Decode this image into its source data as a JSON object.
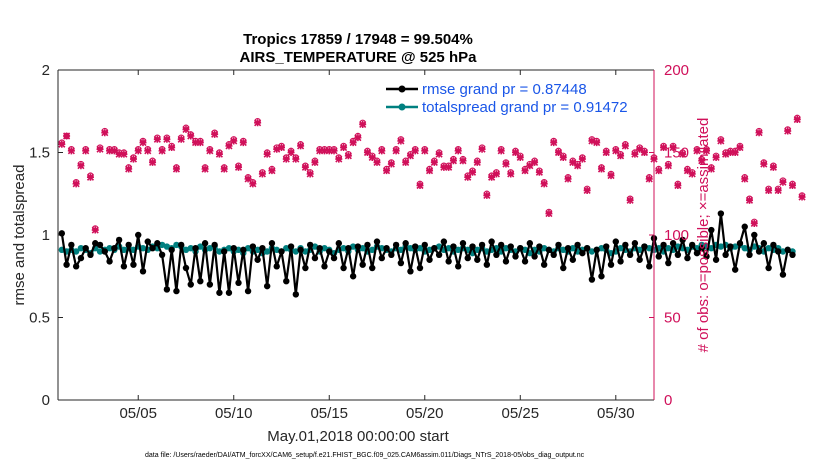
{
  "chart_data": {
    "type": "line",
    "title": "Tropics 17859 / 17948 = 99.504%",
    "subtitle": "AIRS_TEMPERATURE @ 525 hPa",
    "xlabel": "May.01,2018 00:00:00 start",
    "ylabel": "rmse and totalspread",
    "ylabel_right": "# of obs: o=possible; ×=assimilated",
    "footnote": "data file: /Users/raeder/DAI/ATM_forcXX/CAM6_setup/f.e21.FHIST_BGC.f09_025.CAM6assim.011/Diags_NTrS_2018-05/obs_diag_output.nc",
    "xlim": [
      0.8,
      32.0
    ],
    "ylim": [
      0,
      2
    ],
    "ylim_right": [
      0,
      200
    ],
    "x_ticks": [
      5,
      10,
      15,
      20,
      25,
      30
    ],
    "x_tick_labels": [
      "05/05",
      "05/10",
      "05/15",
      "05/20",
      "05/25",
      "05/30"
    ],
    "y_ticks": [
      0,
      0.5,
      1,
      1.5,
      2
    ],
    "y_tick_labels": [
      "0",
      "0.5",
      "1",
      "1.5",
      "2"
    ],
    "y_ticks_right": [
      0,
      50,
      100,
      150,
      200
    ],
    "y_tick_labels_right": [
      "0",
      "50",
      "100",
      "150",
      "200"
    ],
    "x_start": 1.0,
    "x_step": 0.25,
    "legend_placement": "top-right",
    "series": [
      {
        "name": "rmse grand pr = 0.87448",
        "color": "#000000",
        "marker": "circle",
        "values": [
          1.01,
          0.82,
          0.94,
          0.81,
          0.86,
          0.92,
          0.88,
          0.95,
          0.94,
          0.9,
          0.84,
          0.92,
          0.97,
          0.81,
          0.94,
          0.82,
          1.0,
          0.78,
          0.96,
          0.92,
          0.95,
          0.88,
          0.67,
          0.91,
          0.66,
          0.94,
          0.8,
          0.7,
          0.92,
          0.72,
          0.95,
          0.7,
          0.94,
          0.65,
          0.9,
          0.65,
          0.92,
          0.71,
          0.91,
          0.66,
          0.93,
          0.85,
          0.92,
          0.69,
          0.95,
          0.81,
          0.9,
          0.72,
          0.93,
          0.64,
          0.91,
          0.8,
          0.94,
          0.86,
          0.92,
          0.81,
          0.9,
          0.86,
          0.95,
          0.8,
          0.92,
          0.75,
          0.93,
          0.82,
          0.94,
          0.8,
          0.96,
          0.86,
          0.92,
          0.88,
          0.94,
          0.83,
          0.95,
          0.78,
          0.93,
          0.8,
          0.94,
          0.85,
          0.92,
          0.88,
          0.96,
          0.84,
          0.93,
          0.81,
          0.95,
          0.86,
          0.93,
          0.85,
          0.94,
          0.82,
          0.96,
          0.88,
          0.94,
          0.84,
          0.93,
          0.87,
          0.92,
          0.84,
          0.95,
          0.87,
          0.93,
          0.82,
          0.91,
          0.88,
          0.94,
          0.8,
          0.92,
          0.85,
          0.94,
          0.89,
          0.92,
          0.73,
          0.91,
          0.75,
          0.93,
          0.82,
          0.96,
          0.84,
          0.94,
          0.88,
          0.95,
          0.85,
          0.93,
          0.81,
          0.98,
          0.87,
          0.94,
          0.83,
          0.95,
          0.88,
          0.97,
          0.86,
          0.94,
          0.89,
          0.92,
          0.87,
          1.03,
          0.85,
          1.13,
          0.88,
          0.93,
          0.79,
          0.95,
          1.05,
          0.88,
          1.0,
          0.9,
          0.95,
          0.8,
          0.94,
          0.9,
          0.76,
          0.91,
          0.88
        ],
        "values_right": null
      },
      {
        "name": "totalspread grand pr = 0.91472",
        "color": "#008080",
        "marker": "circle",
        "values": [
          0.91,
          0.9,
          0.91,
          0.9,
          0.92,
          0.91,
          0.89,
          0.92,
          0.9,
          0.91,
          0.92,
          0.91,
          0.93,
          0.91,
          0.92,
          0.91,
          0.93,
          0.92,
          0.91,
          0.93,
          0.92,
          0.94,
          0.93,
          0.92,
          0.94,
          0.93,
          0.91,
          0.92,
          0.9,
          0.93,
          0.91,
          0.92,
          0.93,
          0.9,
          0.91,
          0.92,
          0.9,
          0.91,
          0.89,
          0.92,
          0.9,
          0.91,
          0.89,
          0.9,
          0.92,
          0.91,
          0.9,
          0.92,
          0.91,
          0.9,
          0.92,
          0.9,
          0.91,
          0.93,
          0.9,
          0.92,
          0.91,
          0.89,
          0.91,
          0.92,
          0.9,
          0.93,
          0.91,
          0.92,
          0.9,
          0.91,
          0.93,
          0.92,
          0.91,
          0.9,
          0.92,
          0.91,
          0.93,
          0.92,
          0.91,
          0.92,
          0.9,
          0.91,
          0.92,
          0.93,
          0.91,
          0.92,
          0.9,
          0.91,
          0.92,
          0.91,
          0.89,
          0.91,
          0.92,
          0.9,
          0.91,
          0.92,
          0.9,
          0.92,
          0.91,
          0.9,
          0.92,
          0.91,
          0.89,
          0.91,
          0.9,
          0.92,
          0.91,
          0.9,
          0.92,
          0.91,
          0.9,
          0.92,
          0.9,
          0.91,
          0.92,
          0.9,
          0.91,
          0.92,
          0.91,
          0.89,
          0.9,
          0.92,
          0.91,
          0.9,
          0.92,
          0.91,
          0.93,
          0.92,
          0.91,
          0.92,
          0.9,
          0.92,
          0.91,
          0.93,
          0.92,
          0.91,
          0.93,
          0.92,
          0.94,
          0.93,
          0.92,
          0.94,
          0.93,
          0.94,
          0.92,
          0.93,
          0.94,
          0.92,
          0.91,
          0.93,
          0.92,
          0.9,
          0.92,
          0.91,
          0.92,
          0.9,
          0.91,
          0.9
        ]
      }
    ],
    "obs_counts": {
      "name": "# of obs",
      "color": "#d0105a",
      "possible": [
        156,
        160,
        152,
        132,
        143,
        152,
        136,
        104,
        153,
        163,
        152,
        152,
        150,
        150,
        141,
        147,
        152,
        157,
        152,
        145,
        159,
        152,
        159,
        154,
        141,
        159,
        165,
        161,
        157,
        157,
        141,
        152,
        162,
        150,
        141,
        155,
        158,
        142,
        157,
        135,
        132,
        169,
        138,
        150,
        140,
        153,
        154,
        147,
        151,
        147,
        155,
        142,
        138,
        145,
        152,
        152,
        152,
        152,
        147,
        154,
        149,
        157,
        160,
        168,
        151,
        148,
        145,
        152,
        140,
        144,
        152,
        158,
        145,
        149,
        152,
        131,
        152,
        140,
        145,
        150,
        142,
        142,
        146,
        152,
        146,
        136,
        139,
        145,
        153,
        125,
        136,
        138,
        152,
        144,
        138,
        151,
        148,
        140,
        143,
        145,
        139,
        132,
        114,
        157,
        151,
        148,
        135,
        145,
        143,
        147,
        128,
        158,
        157,
        141,
        151,
        137,
        152,
        149,
        155,
        122,
        150,
        153,
        151,
        135,
        147,
        140,
        154,
        143,
        154,
        131,
        150,
        140,
        138,
        152,
        146,
        152,
        141,
        148,
        158,
        150,
        151,
        151,
        154,
        135,
        122,
        108,
        163,
        144,
        128,
        142,
        128,
        133,
        164,
        131,
        171,
        124
      ],
      "assimilated": [
        155,
        160,
        151,
        131,
        142,
        151,
        135,
        103,
        152,
        162,
        151,
        151,
        149,
        149,
        140,
        146,
        151,
        156,
        151,
        144,
        158,
        151,
        158,
        153,
        140,
        158,
        164,
        160,
        156,
        156,
        140,
        151,
        161,
        149,
        140,
        154,
        157,
        141,
        156,
        134,
        131,
        168,
        137,
        149,
        139,
        152,
        153,
        146,
        150,
        146,
        154,
        141,
        137,
        144,
        151,
        151,
        151,
        151,
        146,
        153,
        148,
        156,
        159,
        167,
        150,
        147,
        144,
        151,
        139,
        143,
        151,
        157,
        144,
        148,
        151,
        130,
        151,
        139,
        144,
        149,
        141,
        141,
        145,
        151,
        145,
        135,
        138,
        144,
        152,
        124,
        135,
        137,
        151,
        143,
        137,
        150,
        147,
        139,
        142,
        144,
        138,
        131,
        113,
        156,
        150,
        147,
        134,
        144,
        142,
        146,
        127,
        157,
        156,
        140,
        150,
        136,
        151,
        148,
        154,
        121,
        149,
        152,
        150,
        134,
        146,
        139,
        153,
        142,
        153,
        130,
        149,
        139,
        137,
        151,
        145,
        151,
        140,
        147,
        157,
        149,
        150,
        150,
        153,
        134,
        121,
        107,
        162,
        143,
        127,
        141,
        127,
        132,
        163,
        130,
        170,
        123
      ]
    }
  }
}
